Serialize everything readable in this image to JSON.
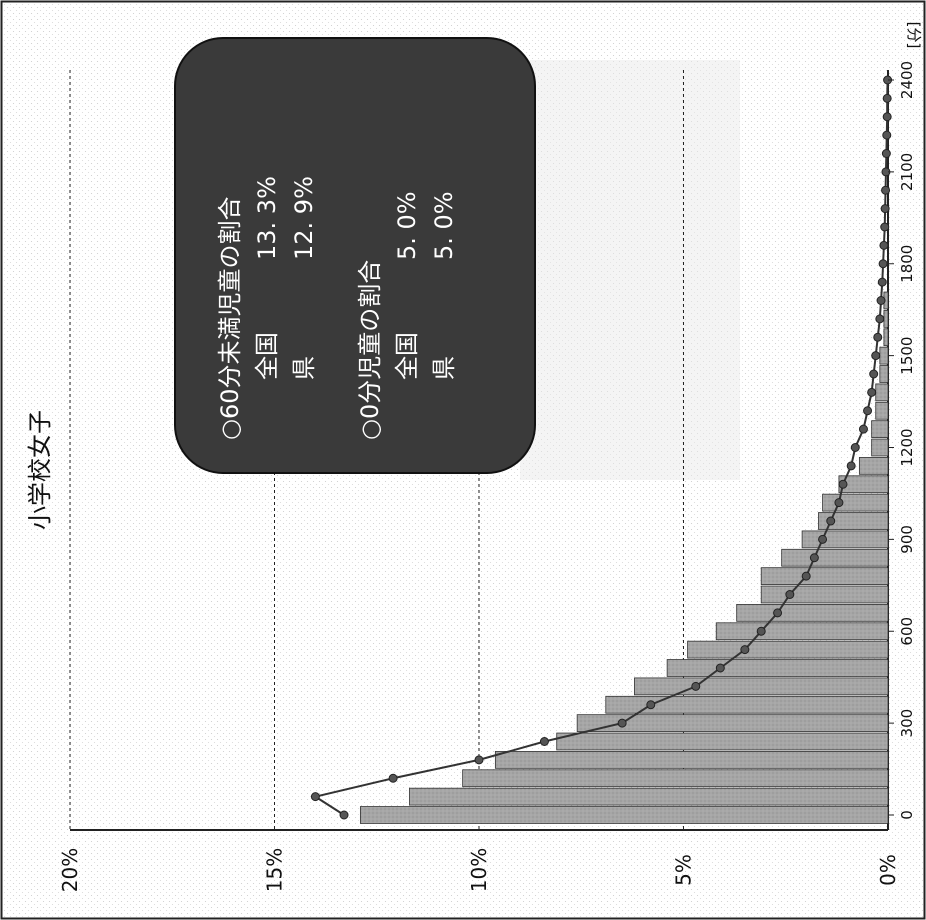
{
  "chart_data": {
    "type": "bar",
    "title": "小学校女子",
    "unit_label": "[分]",
    "x_ticks": [
      "0",
      "300",
      "600",
      "900",
      "1200",
      "1500",
      "1800",
      "2100",
      "2400"
    ],
    "y_ticks": [
      "0%",
      "5%",
      "10%",
      "15%",
      "20%"
    ],
    "ylim": [
      0,
      20
    ],
    "xlim": [
      0,
      2400
    ],
    "grid": true,
    "categories": [
      0,
      60,
      120,
      180,
      240,
      300,
      360,
      420,
      480,
      540,
      600,
      660,
      720,
      780,
      840,
      900,
      960,
      1020,
      1080,
      1140,
      1200,
      1260,
      1320,
      1380,
      1440,
      1500,
      1560,
      1620,
      1680,
      1740,
      1800,
      1860,
      1920,
      1980,
      2040,
      2100,
      2160,
      2220,
      2280,
      2340,
      2400
    ],
    "series": [
      {
        "values": [
          12.9,
          11.7,
          10.4,
          9.6,
          8.1,
          7.6,
          6.9,
          6.2,
          5.4,
          4.9,
          4.2,
          3.7,
          3.1,
          3.1,
          2.6,
          2.1,
          1.7,
          1.6,
          1.2,
          0.7,
          0.4,
          0.4,
          0.3,
          0.3,
          0.2,
          0.2,
          0.1,
          0.1,
          0.1,
          0,
          0,
          0,
          0,
          0,
          0,
          0,
          0,
          0,
          0,
          0,
          0
        ]
      },
      {
        "values": [
          13.3,
          14.0,
          12.1,
          10.0,
          8.4,
          6.5,
          5.8,
          4.7,
          4.1,
          3.5,
          3.1,
          2.7,
          2.4,
          2.0,
          1.8,
          1.6,
          1.4,
          1.2,
          1.1,
          0.9,
          0.8,
          0.6,
          0.5,
          0.4,
          0.35,
          0.3,
          0.25,
          0.2,
          0.17,
          0.14,
          0.12,
          0.1,
          0.08,
          0.07,
          0.06,
          0.05,
          0.04,
          0.03,
          0.02,
          0.02,
          0.01
        ]
      }
    ],
    "info_box": {
      "heading1": "○60分未満児童の割合",
      "row1_label": "全国",
      "row1_value": "13. 3%",
      "row2_label": "県",
      "row2_value": "12. 9%",
      "heading2": "○0分児童の割合",
      "row3_label": "全国",
      "row3_value": "5. 0%",
      "row4_label": "県",
      "row4_value": "5. 0%"
    },
    "colors": {
      "bar": "#9a9a9a",
      "line": "#333333",
      "marker": "#555555",
      "info_box": "#3a3a3a",
      "grid": "#222222"
    }
  }
}
